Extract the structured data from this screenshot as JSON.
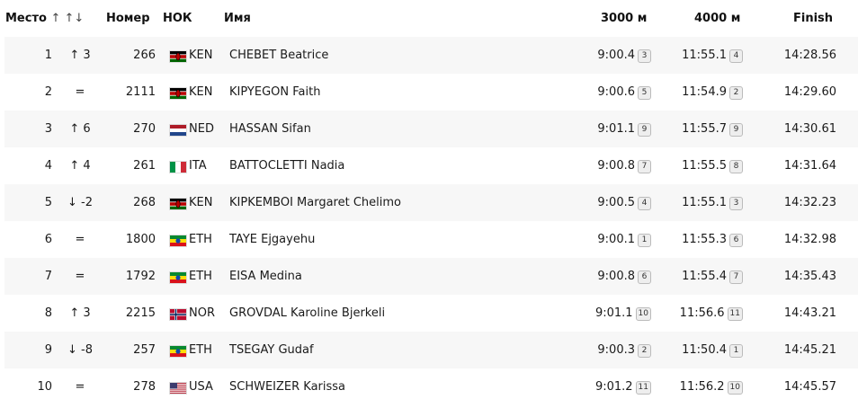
{
  "header": {
    "rank": "Место",
    "sort_icons": "↑ ↑↓",
    "number": "Номер",
    "noc": "НОК",
    "name": "Имя",
    "split1": "3000 м",
    "split2": "4000 м",
    "finish": "Finish"
  },
  "rows": [
    {
      "rank": "1",
      "change": "↑ 3",
      "bib": "266",
      "flag": "kenya-flag-icon",
      "noc": "KEN",
      "name": "CHEBET Beatrice",
      "s3000": "9:00.4",
      "p3000": "3",
      "s4000": "11:55.1",
      "p4000": "4",
      "finish": "14:28.56"
    },
    {
      "rank": "2",
      "change": "=",
      "bib": "2111",
      "flag": "kenya-flag-icon",
      "noc": "KEN",
      "name": "KIPYEGON Faith",
      "s3000": "9:00.6",
      "p3000": "5",
      "s4000": "11:54.9",
      "p4000": "2",
      "finish": "14:29.60"
    },
    {
      "rank": "3",
      "change": "↑ 6",
      "bib": "270",
      "flag": "netherlands-flag-icon",
      "noc": "NED",
      "name": "HASSAN Sifan",
      "s3000": "9:01.1",
      "p3000": "9",
      "s4000": "11:55.7",
      "p4000": "9",
      "finish": "14:30.61"
    },
    {
      "rank": "4",
      "change": "↑ 4",
      "bib": "261",
      "flag": "italy-flag-icon",
      "noc": "ITA",
      "name": "BATTOCLETTI Nadia",
      "s3000": "9:00.8",
      "p3000": "7",
      "s4000": "11:55.5",
      "p4000": "8",
      "finish": "14:31.64"
    },
    {
      "rank": "5",
      "change": "↓ -2",
      "bib": "268",
      "flag": "kenya-flag-icon",
      "noc": "KEN",
      "name": "KIPKEMBOI Margaret Chelimo",
      "s3000": "9:00.5",
      "p3000": "4",
      "s4000": "11:55.1",
      "p4000": "3",
      "finish": "14:32.23"
    },
    {
      "rank": "6",
      "change": "=",
      "bib": "1800",
      "flag": "ethiopia-flag-icon",
      "noc": "ETH",
      "name": "TAYE Ejgayehu",
      "s3000": "9:00.1",
      "p3000": "1",
      "s4000": "11:55.3",
      "p4000": "6",
      "finish": "14:32.98"
    },
    {
      "rank": "7",
      "change": "=",
      "bib": "1792",
      "flag": "ethiopia-flag-icon",
      "noc": "ETH",
      "name": "EISA Medina",
      "s3000": "9:00.8",
      "p3000": "6",
      "s4000": "11:55.4",
      "p4000": "7",
      "finish": "14:35.43"
    },
    {
      "rank": "8",
      "change": "↑ 3",
      "bib": "2215",
      "flag": "norway-flag-icon",
      "noc": "NOR",
      "name": "GROVDAL Karoline Bjerkeli",
      "s3000": "9:01.1",
      "p3000": "10",
      "s4000": "11:56.6",
      "p4000": "11",
      "finish": "14:43.21"
    },
    {
      "rank": "9",
      "change": "↓ -8",
      "bib": "257",
      "flag": "ethiopia-flag-icon",
      "noc": "ETH",
      "name": "TSEGAY Gudaf",
      "s3000": "9:00.3",
      "p3000": "2",
      "s4000": "11:50.4",
      "p4000": "1",
      "finish": "14:45.21"
    },
    {
      "rank": "10",
      "change": "=",
      "bib": "278",
      "flag": "usa-flag-icon",
      "noc": "USA",
      "name": "SCHWEIZER Karissa",
      "s3000": "9:01.2",
      "p3000": "11",
      "s4000": "11:56.2",
      "p4000": "10",
      "finish": "14:45.57"
    }
  ]
}
